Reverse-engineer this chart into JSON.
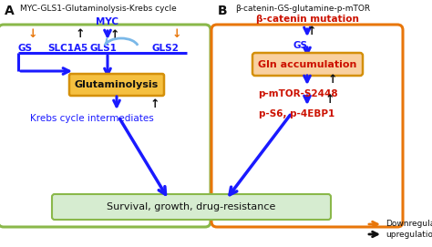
{
  "panel_a_title": "MYC-GLS1-Glutaminolysis-Krebs cycle",
  "panel_b_title": "β-catenin-GS-glutamine-p-mTOR",
  "panel_a_label": "A",
  "panel_b_label": "B",
  "blue": "#1a1aff",
  "orange": "#e8760a",
  "red": "#cc1100",
  "black": "#111111",
  "green_edge": "#8ab84a",
  "orange_edge": "#e8760a",
  "light_orange_fill": "#fce0b0",
  "survival_fill": "#d6ecd0",
  "survival_edge": "#8ab84a",
  "legend_down": "Downregulation",
  "legend_up": "upregulation"
}
